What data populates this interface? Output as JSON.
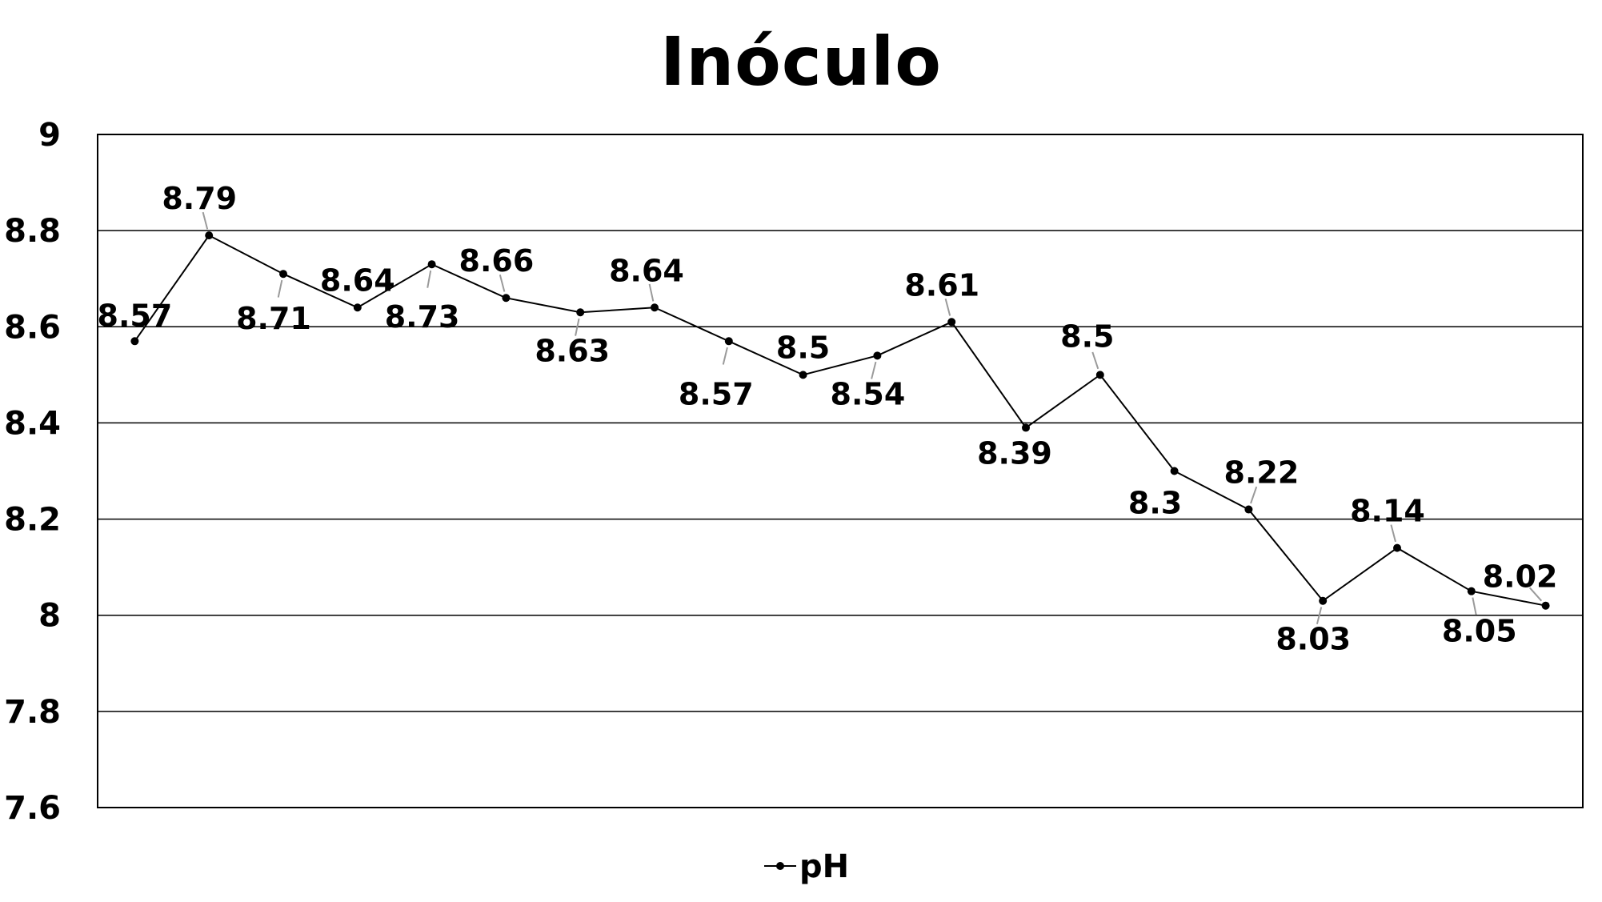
{
  "chart_data": {
    "type": "line",
    "title": "Inóculo",
    "xlabel": "",
    "ylabel": "",
    "ylim": [
      7.6,
      9
    ],
    "yticks": [
      "9",
      "8.8",
      "8.6",
      "8.4",
      "8.2",
      "8",
      "7.8",
      "7.6"
    ],
    "grid": true,
    "legend_position": "bottom",
    "series": [
      {
        "name": "pH",
        "color": "#000000",
        "values": [
          8.57,
          8.79,
          8.71,
          8.64,
          8.73,
          8.66,
          8.63,
          8.64,
          8.57,
          8.5,
          8.54,
          8.61,
          8.39,
          8.5,
          8.3,
          8.22,
          8.03,
          8.14,
          8.05,
          8.02
        ],
        "labels": [
          "8.57",
          "8.79",
          "8.71",
          "8.64",
          "8.73",
          "8.66",
          "8.63",
          "8.64",
          "8.57",
          "8.5",
          "8.54",
          "8.61",
          "8.39",
          "8.5",
          "8.3",
          "8.22",
          "8.03",
          "8.14",
          "8.05",
          "8.02"
        ]
      }
    ]
  }
}
